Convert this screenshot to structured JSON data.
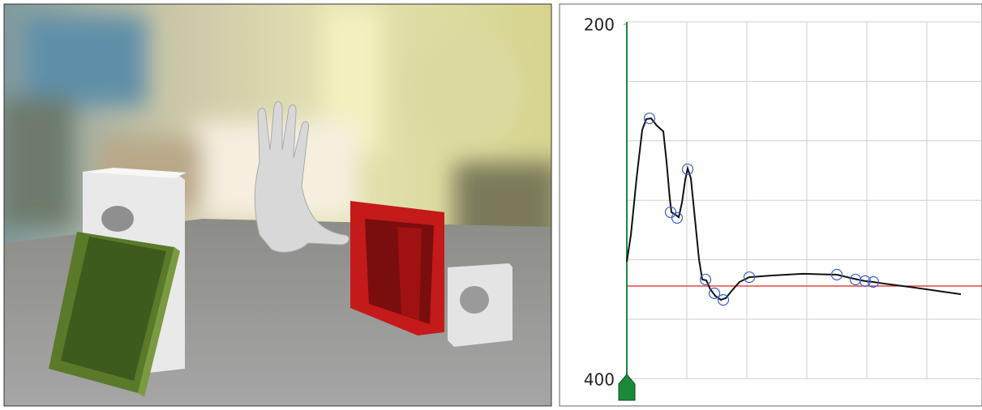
{
  "chart_data": {
    "type": "line",
    "ylim": [
      200,
      400
    ],
    "yticks": [
      200,
      400
    ],
    "xlim": [
      0,
      592
    ],
    "grid": true,
    "series": [
      {
        "color": "#111111",
        "x": [
          0,
          6.8,
          16.2,
          25.7,
          32.4,
          40.5,
          50.0,
          60.8,
          66.2,
          71.6,
          74.3,
          81.1,
          86.5,
          91.9,
          97.3,
          101.4,
          106.8,
          113.5,
          120.3,
          125.7,
          132.4,
          139.2,
          147.3,
          156.8,
          164.9,
          175.7,
          187.8,
          204.1,
          239.2,
          293.2,
          350.0,
          367.6,
          383.8,
          397.3,
          410.8,
          428.4,
          468.9,
          509.5,
          556.8
        ],
        "values": [
          333.8,
          318.7,
          286.8,
          259.4,
          253.4,
          253.0,
          257.1,
          260.3,
          277.6,
          298.2,
          305.9,
          307.3,
          308.7,
          300.5,
          287.7,
          281.3,
          286.8,
          309.6,
          332.4,
          343.8,
          344.3,
          349.3,
          353.0,
          355.3,
          354.3,
          349.8,
          345.2,
          342.5,
          341.6,
          340.6,
          341.1,
          342.5,
          343.8,
          344.7,
          345.2,
          346.1,
          347.9,
          349.8,
          352.1
        ]
      }
    ],
    "keyframes": {
      "color": "#3a5fcd",
      "x": [
        37.8,
        101.4,
        73.0,
        83.8,
        131.1,
        146.0,
        160.8,
        204.1,
        350.0,
        381.1,
        397.3,
        410.8
      ],
      "values": [
        253.0,
        281.7,
        305.9,
        309.1,
        343.8,
        351.6,
        355.3,
        342.5,
        341.1,
        343.8,
        344.7,
        345.2
      ]
    },
    "reference_line": {
      "color": "#e02020",
      "value": 347.5
    },
    "cursor": {
      "color": "#1a8a3a",
      "value": 0
    }
  }
}
